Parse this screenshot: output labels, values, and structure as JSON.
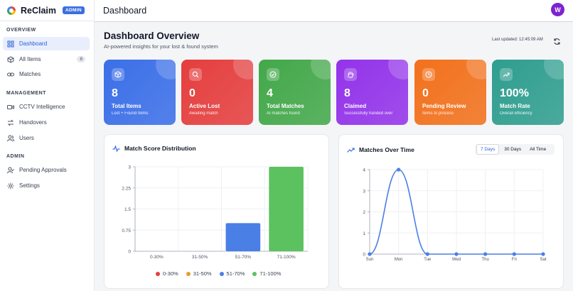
{
  "app": {
    "name": "ReClaim",
    "badge": "ADMIN"
  },
  "header": {
    "title": "Dashboard",
    "avatar_initial": "W"
  },
  "sidebar": {
    "sections": [
      {
        "label": "OVERVIEW"
      },
      {
        "label": "MANAGEMENT"
      },
      {
        "label": "ADMIN"
      }
    ],
    "items": [
      {
        "label": "Dashboard",
        "icon": "grid-icon"
      },
      {
        "label": "All Items",
        "icon": "box-icon",
        "count": "8"
      },
      {
        "label": "Matches",
        "icon": "link-icon"
      },
      {
        "label": "CCTV Intelligence",
        "icon": "video-icon"
      },
      {
        "label": "Handovers",
        "icon": "exchange-icon"
      },
      {
        "label": "Users",
        "icon": "users-icon"
      },
      {
        "label": "Pending Approvals",
        "icon": "user-check-icon"
      },
      {
        "label": "Settings",
        "icon": "gear-icon"
      }
    ]
  },
  "page": {
    "title": "Dashboard Overview",
    "subtitle": "AI-powered insights for your lost & found system",
    "last_updated": "Last updated: 12:45:09 AM"
  },
  "stats": [
    {
      "value": "8",
      "label": "Total Items",
      "sub": "Lost + Found Items",
      "color": "#3b6fe8",
      "icon": "cube-icon"
    },
    {
      "value": "0",
      "label": "Active Lost",
      "sub": "Awaiting match",
      "color": "#e53e3e",
      "icon": "search-icon"
    },
    {
      "value": "4",
      "label": "Total Matches",
      "sub": "AI matches found",
      "color": "#43a84a",
      "icon": "check-circle-icon"
    },
    {
      "value": "8",
      "label": "Claimed",
      "sub": "Successfully handed over",
      "color": "#9333ea",
      "icon": "hand-icon"
    },
    {
      "value": "0",
      "label": "Pending Review",
      "sub": "Items to process",
      "color": "#f2711c",
      "icon": "clock-icon"
    },
    {
      "value": "100%",
      "label": "Match Rate",
      "sub": "Overall efficiency",
      "color": "#2f9e8f",
      "icon": "trend-icon"
    }
  ],
  "panels": {
    "distribution_title": "Match Score Distribution",
    "over_time_title": "Matches Over Time",
    "range_options": [
      "7 Days",
      "30 Days",
      "All Time"
    ],
    "range_selected": "7 Days"
  },
  "chart_data": [
    {
      "type": "bar",
      "title": "Match Score Distribution",
      "categories": [
        "0-30%",
        "31-50%",
        "51-70%",
        "71-100%"
      ],
      "values": [
        0,
        0,
        1,
        3
      ],
      "colors": [
        "#e53e3e",
        "#e0a030",
        "#4a7fe6",
        "#5cc15f"
      ],
      "ylim": [
        0,
        3
      ],
      "yticks": [
        "0",
        "0.75",
        "1.5",
        "2.25",
        "3"
      ],
      "legend": [
        "0-30%",
        "31-50%",
        "51-70%",
        "71-100%"
      ],
      "grid": true
    },
    {
      "type": "line",
      "title": "Matches Over Time",
      "x": [
        "Sun",
        "Mon",
        "Tue",
        "Wed",
        "Thu",
        "Fri",
        "Sat"
      ],
      "values": [
        0,
        4,
        0,
        0,
        0,
        0,
        0
      ],
      "ylim": [
        0,
        4
      ],
      "yticks": [
        "0",
        "1",
        "2",
        "3",
        "4"
      ],
      "color": "#4a7fe6",
      "grid": true
    }
  ]
}
